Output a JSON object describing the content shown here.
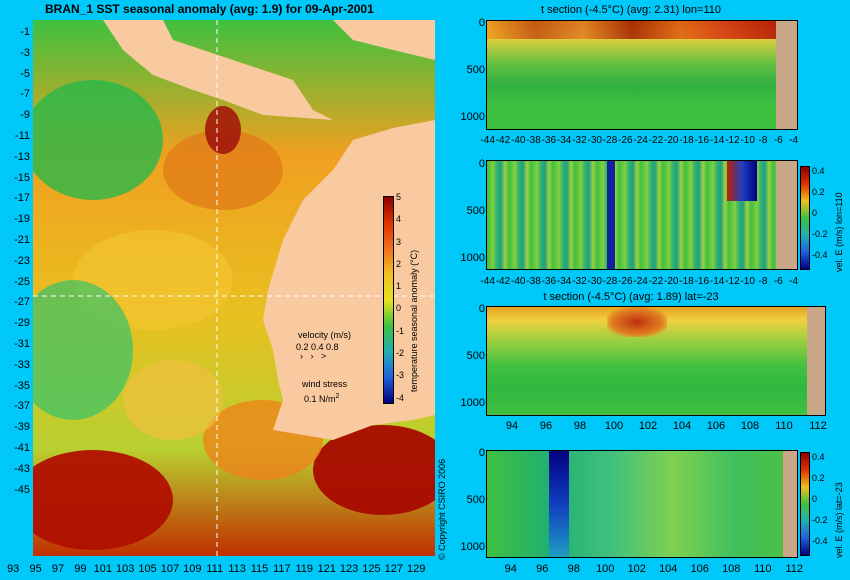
{
  "map": {
    "title": "BRAN_1  SST seasonal anomaly  (avg: 1.9) for 09-Apr-2001",
    "y_ticks": [
      "-1",
      "-3",
      "-5",
      "-7",
      "-9",
      "-11",
      "-13",
      "-15",
      "-17",
      "-19",
      "-21",
      "-23",
      "-25",
      "-27",
      "-29",
      "-31",
      "-33",
      "-35",
      "-37",
      "-39",
      "-41",
      "-43",
      "-45"
    ],
    "x_ticks": [
      "93",
      "95",
      "97",
      "99",
      "101",
      "103",
      "105",
      "107",
      "109",
      "111",
      "113",
      "115",
      "117",
      "119",
      "121",
      "123",
      "125",
      "127",
      "129"
    ],
    "colorbar": {
      "ticks": [
        "5",
        "4",
        "3",
        "2",
        "1",
        "0",
        "-1",
        "-2",
        "-3",
        "-4"
      ],
      "label": "temperature seasonal anomaly (°C)"
    },
    "velocity_legend": {
      "title": "velocity (m/s)",
      "values": "0.2 0.4 0.8"
    },
    "wind_legend": {
      "title": "wind stress",
      "value": "0.1 N/m",
      "superscript": "2"
    },
    "copyright": "© Copyright CSIRO 2006"
  },
  "panels": [
    {
      "title": "t section (-4.5°C) (avg: 2.31) lon=110",
      "y_ticks": [
        "0",
        "500",
        "1000"
      ],
      "x_ticks": [
        "-44",
        "-42",
        "-40",
        "-38",
        "-36",
        "-34",
        "-32",
        "-30",
        "-28",
        "-26",
        "-24",
        "-22",
        "-20",
        "-18",
        "-16",
        "-14",
        "-12",
        "-10",
        "-8",
        "-6",
        "-4"
      ],
      "colorbar": null
    },
    {
      "title": "",
      "y_ticks": [
        "0",
        "500",
        "1000"
      ],
      "x_ticks": [
        "-44",
        "-42",
        "-40",
        "-38",
        "-36",
        "-34",
        "-32",
        "-30",
        "-28",
        "-26",
        "-24",
        "-22",
        "-20",
        "-18",
        "-16",
        "-14",
        "-12",
        "-10",
        "-8",
        "-6",
        "-4"
      ],
      "colorbar": {
        "ticks": [
          "0.4",
          "0.2",
          "0",
          "-0.2",
          "-0.4"
        ],
        "label": "vel. E (m/s) lon=110"
      }
    },
    {
      "title": "t section (-4.5°C) (avg: 1.89) lat=-23",
      "y_ticks": [
        "0",
        "500",
        "1000"
      ],
      "x_ticks": [
        "94",
        "96",
        "98",
        "100",
        "102",
        "104",
        "106",
        "108",
        "110",
        "112"
      ],
      "colorbar": null
    },
    {
      "title": "",
      "y_ticks": [
        "0",
        "500",
        "1000"
      ],
      "x_ticks": [
        "94",
        "96",
        "98",
        "100",
        "102",
        "104",
        "106",
        "108",
        "110",
        "112"
      ],
      "colorbar": {
        "ticks": [
          "0.4",
          "0.2",
          "0",
          "-0.2",
          "-0.4"
        ],
        "label": "vel. E (m/s) lat=-23"
      }
    }
  ]
}
